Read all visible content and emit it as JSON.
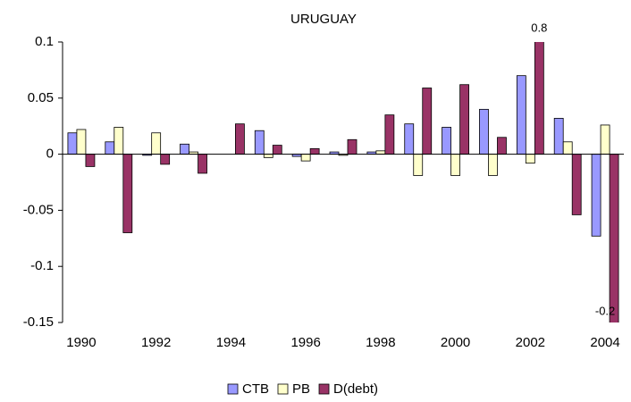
{
  "chart_data": {
    "type": "bar",
    "title": "URUGUAY",
    "categories": [
      "1990",
      null,
      "1992",
      null,
      "1994",
      null,
      "1996",
      null,
      "1998",
      null,
      "2000",
      null,
      "2002",
      null,
      "2004"
    ],
    "series": [
      {
        "name": "CTB",
        "color": "#9999ff",
        "values": [
          0.019,
          0.011,
          -0.001,
          0.009,
          0,
          0.021,
          -0.002,
          0.002,
          0.002,
          0.027,
          0.024,
          0.04,
          0.07,
          0.032,
          -0.073
        ]
      },
      {
        "name": "PB",
        "color": "#ffffcc",
        "values": [
          0.022,
          0.024,
          0.019,
          0.002,
          0,
          -0.003,
          -0.006,
          -0.001,
          0.003,
          -0.019,
          -0.019,
          -0.019,
          -0.008,
          0.011,
          0.026
        ]
      },
      {
        "name": "D(debt)",
        "color": "#993366",
        "values": [
          -0.011,
          -0.07,
          -0.009,
          -0.017,
          0.027,
          0.008,
          0.005,
          0.013,
          0.035,
          0.059,
          0.062,
          0.015,
          0.8,
          -0.054,
          -0.2
        ],
        "value_labels": [
          null,
          null,
          null,
          null,
          null,
          null,
          null,
          null,
          null,
          null,
          null,
          null,
          "0.8",
          null,
          "-0.2"
        ]
      }
    ],
    "ylim": [
      -0.15,
      0.1
    ],
    "yticks": [
      0.1,
      0.05,
      0,
      -0.05,
      -0.1,
      -0.15
    ],
    "grid": false,
    "legend": "bottom"
  }
}
